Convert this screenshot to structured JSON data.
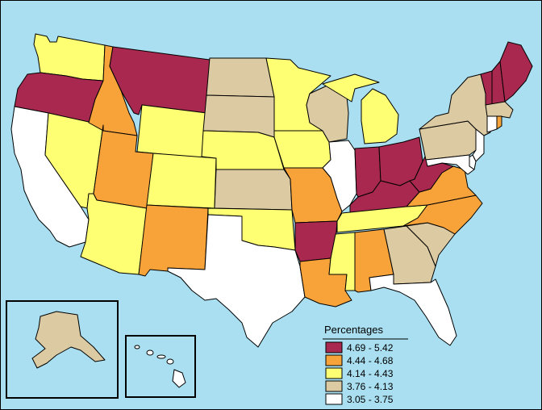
{
  "legend": {
    "title": "Percentages",
    "classes": [
      {
        "label": "4.69 - 5.42",
        "color": "#a8284f"
      },
      {
        "label": "4.44 - 4.68",
        "color": "#f7a33a"
      },
      {
        "label": "4.14 - 4.43",
        "color": "#ffff73"
      },
      {
        "label": "3.76 - 4.13",
        "color": "#dccaa3"
      },
      {
        "label": "3.05 - 3.75",
        "color": "#ffffff"
      }
    ]
  },
  "states": {
    "WA": 2,
    "OR": 0,
    "CA": 4,
    "NV": 2,
    "ID": 1,
    "MT": 0,
    "WY": 2,
    "UT": 1,
    "AZ": 2,
    "CO": 2,
    "NM": 1,
    "ND": 3,
    "SD": 3,
    "NE": 2,
    "KS": 3,
    "OK": 2,
    "TX": 4,
    "MN": 2,
    "IA": 2,
    "MO": 1,
    "AR": 0,
    "LA": 1,
    "WI": 3,
    "IL": 4,
    "MI": 2,
    "IN": 0,
    "OH": 0,
    "KY": 0,
    "TN": 2,
    "MS": 2,
    "AL": 1,
    "GA": 3,
    "FL": 4,
    "SC": 3,
    "NC": 1,
    "VA": 1,
    "WV": 0,
    "PA": 3,
    "NY": 3,
    "VT": 0,
    "NH": 0,
    "ME": 0,
    "MA": 3,
    "CT": 4,
    "RI": 1,
    "NJ": 4,
    "DE": 4,
    "MD": 4,
    "AK": 3,
    "HI": 4
  }
}
